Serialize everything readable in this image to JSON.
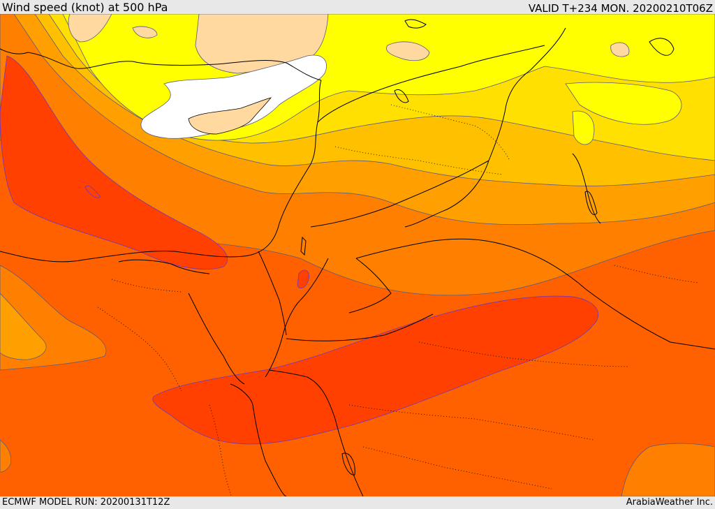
{
  "header": {
    "title": "Wind speed (knot) at 500 hPa",
    "valid": "VALID T+234 MON. 20200210T06Z"
  },
  "footer": {
    "model_run": "ECMWF MODEL RUN: 20200131T12Z",
    "credit": "ArabiaWeather Inc."
  },
  "colors": {
    "white": "#ffffff",
    "tan": "#ffd9a0",
    "yellow": "#ffff00",
    "gold": "#ffe000",
    "light_orange": "#ffc000",
    "orange": "#ffa000",
    "dark_orange": "#ff8000",
    "red_orange": "#ff6000",
    "red": "#ff4000",
    "contour": "#5a5a7a",
    "border": "#000000"
  }
}
